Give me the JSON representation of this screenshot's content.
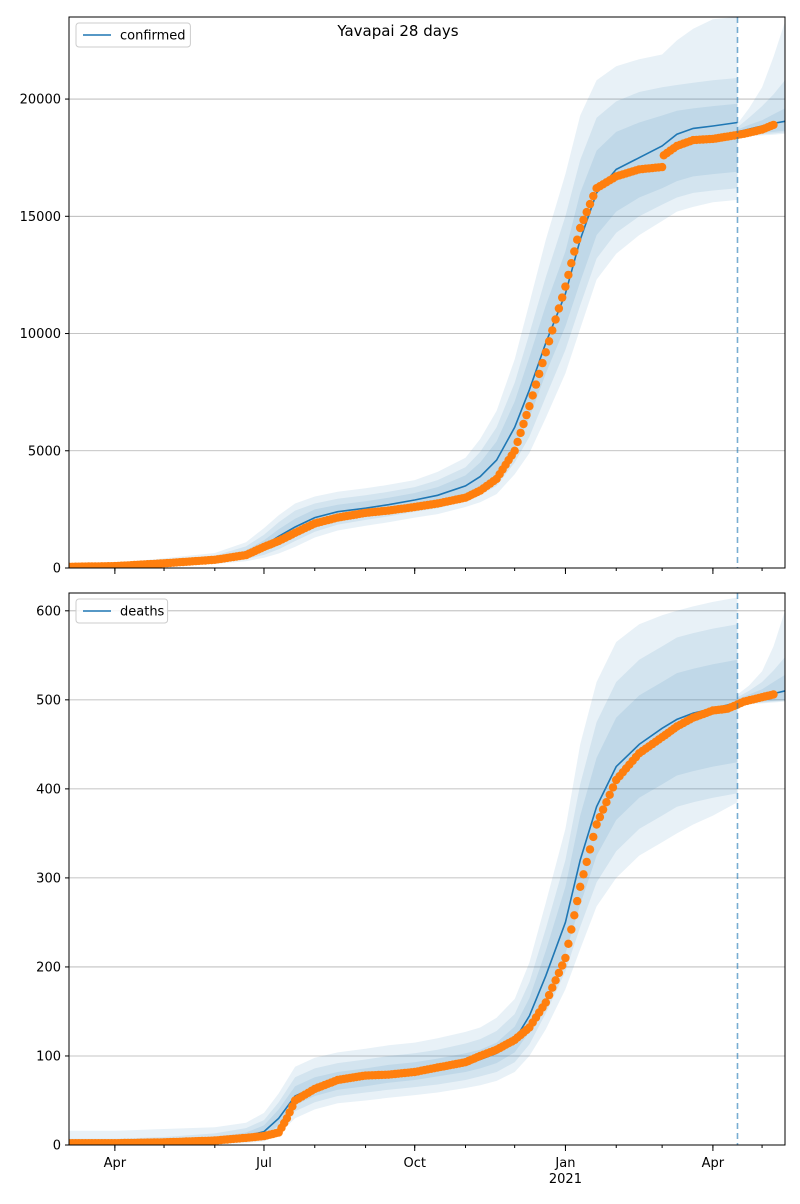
{
  "title": "Yavapai 28 days",
  "x_axis": {
    "ticks": [
      {
        "date": "2020-04-01",
        "label": "Apr"
      },
      {
        "date": "2020-07-01",
        "label": "Jul"
      },
      {
        "date": "2020-10-01",
        "label": "Oct"
      },
      {
        "date": "2021-01-01",
        "label": "Jan"
      },
      {
        "date": "2021-04-01",
        "label": "Apr"
      }
    ],
    "year_label": "2021",
    "range": [
      "2020-03-04",
      "2021-05-15"
    ]
  },
  "forecast_start": "2021-04-16",
  "colors": {
    "model_line": "#1f77b4",
    "band": "#1f77b4",
    "observed": "#ff7f0e",
    "grid": "#b0b0b0"
  },
  "chart_data": [
    {
      "type": "line",
      "series": [
        {
          "name": "confirmed",
          "role": "model"
        },
        {
          "role": "observed"
        }
      ],
      "ylim": [
        0,
        23500
      ],
      "yticks": [
        0,
        5000,
        10000,
        15000,
        20000
      ],
      "ytick_labels": [
        "0",
        "5000",
        "10000",
        "15000",
        "20000"
      ],
      "grid": "horizontal",
      "legend": "top-left",
      "model": {
        "x": [
          "2020-03-04",
          "2020-04-01",
          "2020-05-01",
          "2020-06-01",
          "2020-06-20",
          "2020-07-01",
          "2020-07-10",
          "2020-07-20",
          "2020-08-01",
          "2020-08-15",
          "2020-09-01",
          "2020-09-15",
          "2020-10-01",
          "2020-10-15",
          "2020-11-01",
          "2020-11-10",
          "2020-11-20",
          "2020-12-01",
          "2020-12-10",
          "2020-12-20",
          "2021-01-01",
          "2021-01-10",
          "2021-01-20",
          "2021-02-01",
          "2021-02-15",
          "2021-03-01",
          "2021-03-10",
          "2021-03-20",
          "2021-04-01",
          "2021-04-16"
        ],
        "y": [
          50,
          80,
          200,
          350,
          600,
          950,
          1350,
          1750,
          2150,
          2400,
          2550,
          2700,
          2900,
          3100,
          3500,
          3900,
          4600,
          6000,
          7600,
          9600,
          11700,
          14000,
          16000,
          17000,
          17500,
          18000,
          18500,
          18750,
          18850,
          19000
        ],
        "band_inner": {
          "lo": [
            30,
            60,
            150,
            280,
            480,
            720,
            1000,
            1400,
            1800,
            2100,
            2300,
            2450,
            2650,
            2800,
            3150,
            3450,
            3900,
            5100,
            6400,
            8300,
            10300,
            12200,
            14200,
            15200,
            15800,
            16200,
            16500,
            16700,
            16800,
            16900
          ],
          "hi": [
            90,
            110,
            260,
            440,
            760,
            1180,
            1650,
            2100,
            2500,
            2700,
            2850,
            3000,
            3200,
            3450,
            3950,
            4500,
            5400,
            7100,
            9000,
            11200,
            13500,
            16000,
            17800,
            18600,
            19000,
            19300,
            19500,
            19600,
            19700,
            19800
          ]
        },
        "band_mid": {
          "lo": [
            20,
            40,
            110,
            220,
            380,
            560,
            800,
            1150,
            1550,
            1850,
            2050,
            2200,
            2400,
            2550,
            2850,
            3100,
            3500,
            4500,
            5600,
            7300,
            9300,
            11200,
            13200,
            14300,
            15000,
            15500,
            15800,
            16000,
            16100,
            16200
          ],
          "hi": [
            130,
            150,
            330,
            530,
            920,
            1420,
            1950,
            2450,
            2750,
            2950,
            3100,
            3250,
            3450,
            3750,
            4300,
            4950,
            6000,
            7900,
            10000,
            12400,
            15000,
            17400,
            19200,
            19900,
            20300,
            20500,
            20600,
            20700,
            20800,
            20900
          ]
        },
        "band_outer": {
          "lo": [
            10,
            25,
            80,
            170,
            290,
            440,
            620,
            900,
            1300,
            1600,
            1800,
            1950,
            2150,
            2300,
            2600,
            2800,
            3150,
            4000,
            4900,
            6400,
            8300,
            10200,
            12300,
            13400,
            14200,
            14800,
            15200,
            15400,
            15600,
            15700
          ],
          "hi": [
            180,
            200,
            420,
            640,
            1100,
            1700,
            2250,
            2750,
            3050,
            3250,
            3400,
            3550,
            3750,
            4100,
            4700,
            5500,
            6700,
            8900,
            11300,
            14000,
            16800,
            19300,
            20800,
            21400,
            21700,
            21900,
            22500,
            23000,
            23400,
            23500
          ]
        }
      },
      "forecast": {
        "x": [
          "2021-04-16",
          "2021-04-23",
          "2021-05-01",
          "2021-05-08",
          "2021-05-15"
        ],
        "y": [
          18600,
          18720,
          18850,
          18960,
          19050
        ],
        "band_inner": {
          "lo": [
            18500,
            18520,
            18560,
            18600,
            18650
          ],
          "hi": [
            18700,
            18900,
            19100,
            19350,
            19600
          ]
        },
        "band_mid": {
          "lo": [
            18450,
            18470,
            18500,
            18530,
            18580
          ],
          "hi": [
            18800,
            19200,
            19700,
            20200,
            20800
          ]
        },
        "band_outer": {
          "lo": [
            18400,
            18420,
            18450,
            18480,
            18520
          ],
          "hi": [
            18950,
            19600,
            20500,
            21800,
            23300
          ]
        }
      },
      "observed": {
        "x": [
          "2020-03-04",
          "2020-04-01",
          "2020-05-01",
          "2020-06-01",
          "2020-06-20",
          "2020-07-01",
          "2020-07-10",
          "2020-07-20",
          "2020-08-01",
          "2020-08-15",
          "2020-09-01",
          "2020-09-15",
          "2020-10-01",
          "2020-10-15",
          "2020-11-01",
          "2020-11-10",
          "2020-11-20",
          "2020-12-01",
          "2020-12-10",
          "2020-12-20",
          "2021-01-01",
          "2021-01-10",
          "2021-01-20",
          "2021-02-01",
          "2021-02-15",
          "2021-03-01",
          "2021-03-02",
          "2021-03-10",
          "2021-03-20",
          "2021-04-01",
          "2021-04-10",
          "2021-04-20",
          "2021-05-01",
          "2021-05-08"
        ],
        "y": [
          50,
          80,
          200,
          350,
          550,
          900,
          1150,
          1500,
          1900,
          2150,
          2350,
          2450,
          2600,
          2750,
          3000,
          3300,
          3800,
          5000,
          6900,
          9200,
          12000,
          14500,
          16200,
          16700,
          17000,
          17100,
          17600,
          18000,
          18250,
          18300,
          18400,
          18520,
          18700,
          18900
        ]
      }
    },
    {
      "type": "line",
      "series": [
        {
          "name": "deaths",
          "role": "model"
        },
        {
          "role": "observed"
        }
      ],
      "ylim": [
        0,
        620
      ],
      "yticks": [
        0,
        100,
        200,
        300,
        400,
        500,
        600
      ],
      "ytick_labels": [
        "0",
        "100",
        "200",
        "300",
        "400",
        "500",
        "600"
      ],
      "grid": "horizontal",
      "legend": "top-left",
      "model": {
        "x": [
          "2020-03-04",
          "2020-04-01",
          "2020-05-01",
          "2020-06-01",
          "2020-06-20",
          "2020-07-01",
          "2020-07-10",
          "2020-07-20",
          "2020-08-01",
          "2020-08-15",
          "2020-09-01",
          "2020-09-15",
          "2020-10-01",
          "2020-10-15",
          "2020-11-01",
          "2020-11-10",
          "2020-11-20",
          "2020-12-01",
          "2020-12-10",
          "2020-12-20",
          "2021-01-01",
          "2021-01-10",
          "2021-01-20",
          "2021-02-01",
          "2021-02-15",
          "2021-03-01",
          "2021-03-10",
          "2021-03-20",
          "2021-04-01",
          "2021-04-16"
        ],
        "y": [
          2,
          2,
          4,
          6,
          10,
          15,
          30,
          55,
          65,
          72,
          76,
          80,
          83,
          87,
          92,
          96,
          103,
          118,
          145,
          190,
          250,
          320,
          380,
          425,
          450,
          468,
          478,
          485,
          490,
          497
        ],
        "band_inner": {
          "lo": [
            1,
            1,
            2,
            4,
            6,
            10,
            22,
            45,
            55,
            62,
            66,
            70,
            73,
            77,
            82,
            86,
            92,
            104,
            127,
            165,
            215,
            270,
            325,
            365,
            390,
            405,
            415,
            420,
            425,
            430
          ],
          "hi": [
            4,
            4,
            6,
            9,
            14,
            22,
            40,
            66,
            76,
            82,
            86,
            90,
            93,
            97,
            103,
            107,
            115,
            133,
            165,
            218,
            290,
            370,
            435,
            480,
            505,
            520,
            530,
            535,
            540,
            545
          ]
        },
        "band_mid": {
          "lo": [
            1,
            1,
            1,
            2,
            4,
            7,
            17,
            38,
            48,
            55,
            59,
            62,
            65,
            68,
            73,
            77,
            82,
            93,
            113,
            148,
            195,
            245,
            295,
            330,
            355,
            370,
            380,
            385,
            390,
            395
          ],
          "hi": [
            7,
            7,
            9,
            13,
            19,
            28,
            48,
            76,
            86,
            92,
            96,
            100,
            103,
            107,
            114,
            119,
            128,
            147,
            183,
            243,
            320,
            405,
            475,
            520,
            545,
            560,
            570,
            575,
            580,
            585
          ],
          "note": ""
        },
        "band_outer": {
          "lo": [
            0,
            0,
            0,
            1,
            2,
            4,
            12,
            30,
            40,
            47,
            50,
            53,
            56,
            59,
            64,
            67,
            72,
            82,
            100,
            130,
            175,
            220,
            268,
            300,
            325,
            340,
            350,
            360,
            370,
            385
          ],
          "hi": [
            16,
            16,
            18,
            20,
            25,
            36,
            58,
            88,
            98,
            104,
            108,
            112,
            115,
            120,
            127,
            132,
            143,
            164,
            205,
            272,
            355,
            450,
            520,
            565,
            585,
            595,
            600,
            605,
            610,
            615
          ]
        }
      },
      "forecast": {
        "x": [
          "2021-04-16",
          "2021-04-23",
          "2021-05-01",
          "2021-05-08",
          "2021-05-15"
        ],
        "y": [
          498,
          501,
          504,
          507,
          510
        ],
        "band_inner": {
          "lo": [
            496,
            497,
            498,
            499,
            500
          ],
          "hi": [
            501,
            506,
            512,
            520,
            528
          ]
        },
        "band_mid": {
          "lo": [
            495,
            496,
            497,
            498,
            499
          ],
          "hi": [
            503,
            510,
            520,
            533,
            548
          ]
        },
        "band_outer": {
          "lo": [
            494,
            495,
            496,
            497,
            498
          ],
          "hi": [
            506,
            516,
            532,
            560,
            600
          ]
        }
      },
      "observed": {
        "x": [
          "2020-03-04",
          "2020-04-01",
          "2020-05-01",
          "2020-06-01",
          "2020-06-20",
          "2020-07-01",
          "2020-07-10",
          "2020-07-15",
          "2020-07-20",
          "2020-08-01",
          "2020-08-15",
          "2020-09-01",
          "2020-09-15",
          "2020-10-01",
          "2020-10-15",
          "2020-11-01",
          "2020-11-10",
          "2020-11-20",
          "2020-12-01",
          "2020-12-10",
          "2020-12-20",
          "2021-01-01",
          "2021-01-10",
          "2021-01-20",
          "2021-02-01",
          "2021-02-15",
          "2021-03-01",
          "2021-03-10",
          "2021-03-20",
          "2021-04-01",
          "2021-04-10",
          "2021-04-20",
          "2021-05-01",
          "2021-05-08"
        ],
        "y": [
          2,
          2,
          3,
          5,
          8,
          10,
          14,
          30,
          50,
          63,
          73,
          78,
          79,
          82,
          87,
          93,
          100,
          107,
          118,
          132,
          160,
          210,
          290,
          360,
          410,
          440,
          458,
          470,
          480,
          488,
          490,
          498,
          503,
          506
        ]
      }
    }
  ]
}
